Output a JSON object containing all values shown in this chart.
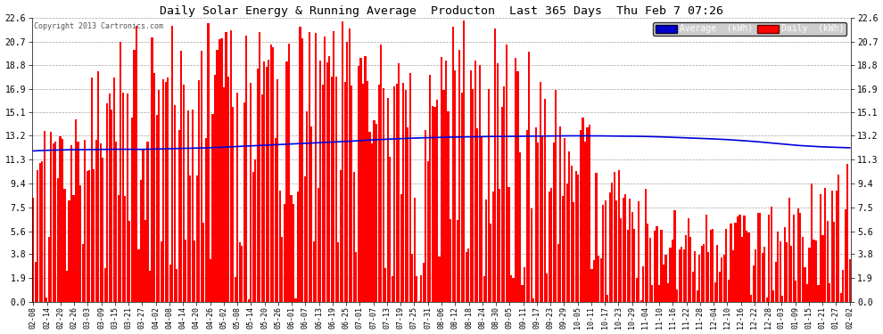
{
  "title": "Daily Solar Energy & Running Average  Producton  Last 365 Days  Thu Feb 7 07:26",
  "copyright": "Copyright 2013 Cartronics.com",
  "background_color": "#ffffff",
  "plot_bg_color": "#ffffff",
  "bar_color": "#ff0000",
  "line_color": "#0000dd",
  "yticks": [
    0.0,
    1.9,
    3.8,
    5.6,
    7.5,
    9.4,
    11.3,
    13.2,
    15.1,
    16.9,
    18.8,
    20.7,
    22.6
  ],
  "ymax": 22.6,
  "ymin": 0.0,
  "legend_avg_color": "#0000cc",
  "legend_daily_color": "#ff0000",
  "legend_avg_label": "Average  (kWh)",
  "legend_daily_label": "Daily  (kWh)",
  "xtick_labels": [
    "02-08",
    "02-14",
    "02-20",
    "02-26",
    "03-03",
    "03-09",
    "03-15",
    "03-21",
    "03-27",
    "04-02",
    "04-08",
    "04-14",
    "04-20",
    "04-26",
    "05-02",
    "05-08",
    "05-14",
    "05-20",
    "05-26",
    "06-01",
    "06-07",
    "06-13",
    "06-19",
    "06-25",
    "07-01",
    "07-07",
    "07-13",
    "07-19",
    "07-25",
    "07-31",
    "08-06",
    "08-12",
    "08-18",
    "08-24",
    "08-30",
    "09-05",
    "09-11",
    "09-17",
    "09-23",
    "09-29",
    "10-05",
    "10-11",
    "10-17",
    "10-23",
    "10-29",
    "11-04",
    "11-10",
    "11-16",
    "11-22",
    "11-28",
    "12-04",
    "12-10",
    "12-16",
    "12-22",
    "12-28",
    "01-03",
    "01-09",
    "01-15",
    "01-21",
    "01-27",
    "02-02"
  ],
  "num_days": 365,
  "avg_line_points": [
    12.0,
    12.05,
    12.08,
    12.1,
    12.1,
    12.12,
    12.13,
    12.13,
    12.12,
    12.15,
    12.18,
    12.2,
    12.22,
    12.25,
    12.3,
    12.35,
    12.4,
    12.45,
    12.5,
    12.55,
    12.6,
    12.65,
    12.7,
    12.75,
    12.82,
    12.88,
    12.93,
    12.98,
    13.02,
    13.05,
    13.08,
    13.1,
    13.12,
    13.14,
    13.15,
    13.16,
    13.17,
    13.18,
    13.19,
    13.2,
    13.2,
    13.2,
    13.19,
    13.18,
    13.17,
    13.15,
    13.12,
    13.08,
    13.04,
    13.0,
    12.95,
    12.9,
    12.82,
    12.75,
    12.65,
    12.55,
    12.45,
    12.38,
    12.32,
    12.28,
    12.25
  ]
}
